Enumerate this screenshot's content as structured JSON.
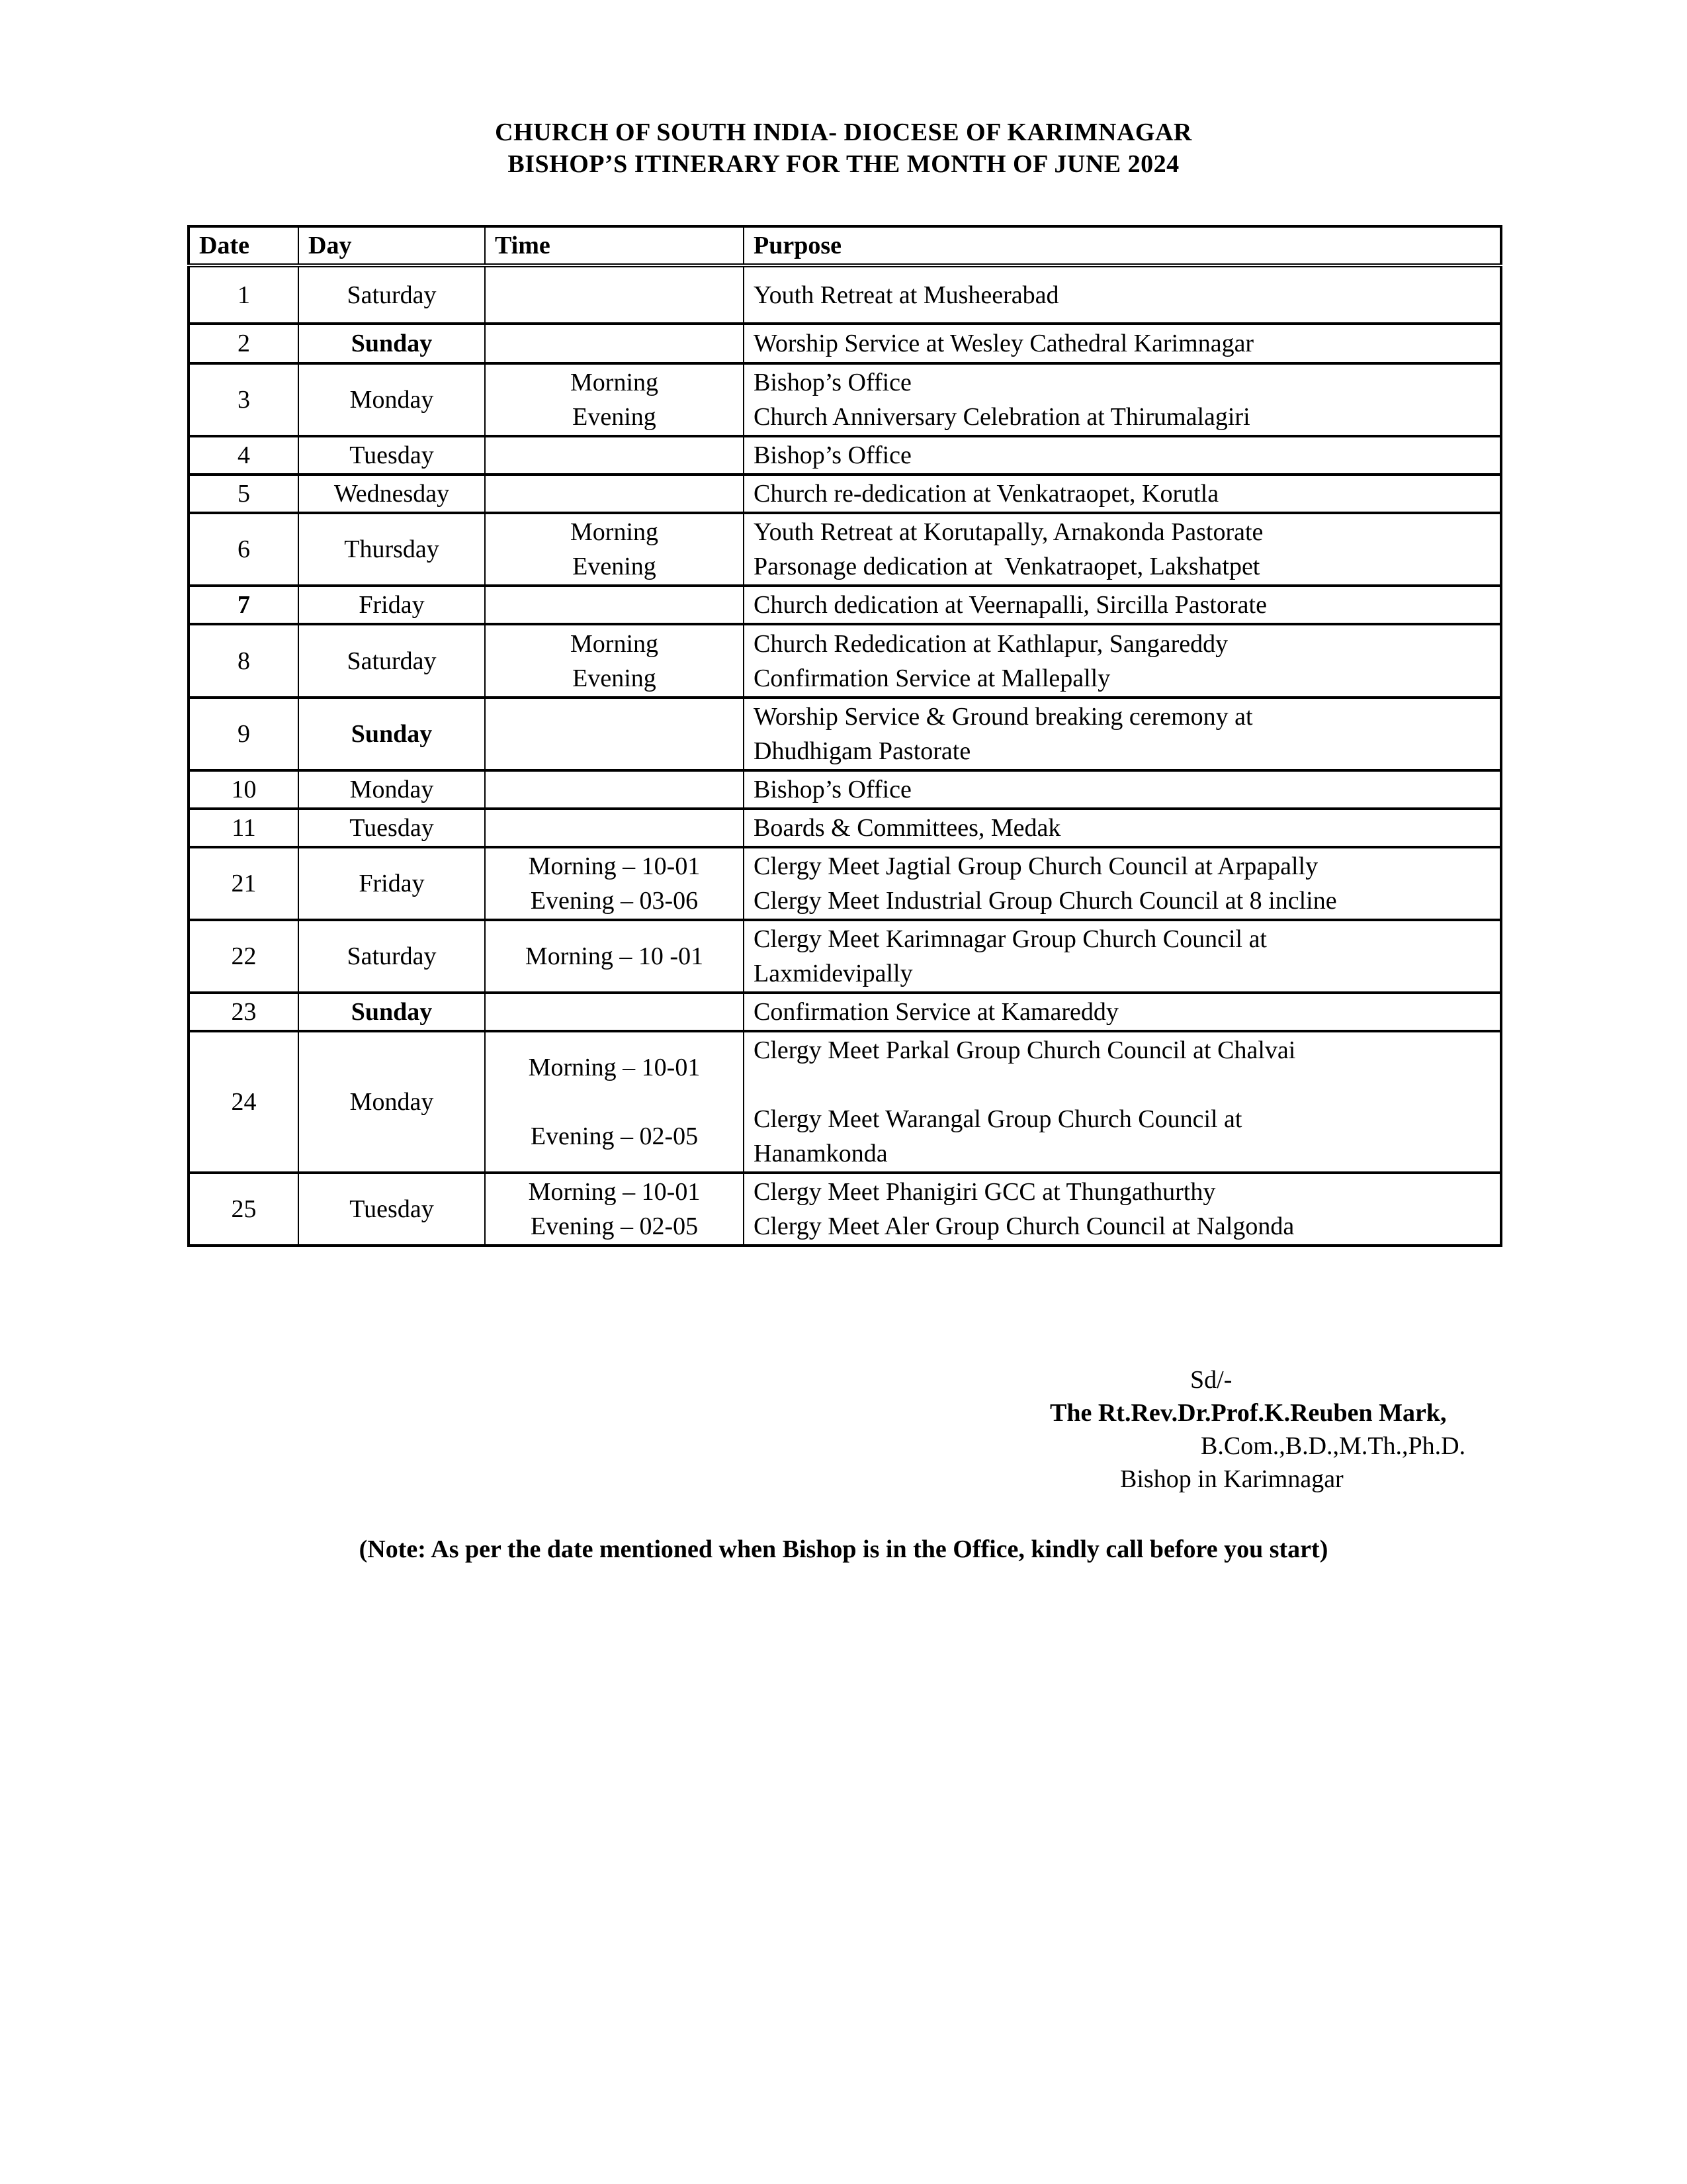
{
  "title": {
    "line1": "CHURCH OF SOUTH INDIA- DIOCESE OF KARIMNAGAR",
    "line2": "BISHOP’S ITINERARY FOR THE MONTH OF JUNE 2024"
  },
  "table": {
    "headers": [
      "Date",
      "Day",
      "Time",
      "Purpose"
    ],
    "rows": [
      {
        "date": "1",
        "day": "Saturday",
        "day_bold": false,
        "date_bold": false,
        "time": "",
        "purpose": "Youth Retreat at Musheerabad"
      },
      {
        "date": "2",
        "day": "Sunday",
        "day_bold": true,
        "date_bold": false,
        "time": "",
        "purpose": "Worship Service at Wesley Cathedral Karimnagar"
      },
      {
        "date": "3",
        "day": "Monday",
        "day_bold": false,
        "date_bold": false,
        "time": "Morning\nEvening",
        "purpose": "Bishop’s Office\nChurch Anniversary Celebration at Thirumalagiri"
      },
      {
        "date": "4",
        "day": "Tuesday",
        "day_bold": false,
        "date_bold": false,
        "time": "",
        "purpose": "Bishop’s Office"
      },
      {
        "date": "5",
        "day": "Wednesday",
        "day_bold": false,
        "date_bold": false,
        "time": "",
        "purpose": "Church re-dedication at Venkatraopet, Korutla"
      },
      {
        "date": "6",
        "day": "Thursday",
        "day_bold": false,
        "date_bold": false,
        "time": "Morning\nEvening",
        "purpose": "Youth Retreat at Korutapally, Arnakonda Pastorate\nParsonage dedication at  Venkatraopet, Lakshatpet"
      },
      {
        "date": "7",
        "day": "Friday",
        "day_bold": false,
        "date_bold": true,
        "time": "",
        "purpose": "Church dedication at Veernapalli, Sircilla Pastorate"
      },
      {
        "date": "8",
        "day": "Saturday",
        "day_bold": false,
        "date_bold": false,
        "time": "Morning\nEvening",
        "purpose": "Church Rededication at Kathlapur, Sangareddy\nConfirmation Service at Mallepally"
      },
      {
        "date": "9",
        "day": "Sunday",
        "day_bold": true,
        "date_bold": false,
        "time": "",
        "purpose": "Worship Service & Ground breaking ceremony at\nDhudhigam Pastorate"
      },
      {
        "date": "10",
        "day": "Monday",
        "day_bold": false,
        "date_bold": false,
        "time": "",
        "purpose": "Bishop’s Office"
      },
      {
        "date": "11",
        "day": "Tuesday",
        "day_bold": false,
        "date_bold": false,
        "time": "",
        "purpose": "Boards & Committees, Medak"
      },
      {
        "date": "21",
        "day": "Friday",
        "day_bold": false,
        "date_bold": false,
        "time": "Morning – 10-01\nEvening – 03-06",
        "purpose": "Clergy Meet Jagtial Group Church Council at Arpapally\nClergy Meet Industrial Group Church Council at 8 incline"
      },
      {
        "date": "22",
        "day": "Saturday",
        "day_bold": false,
        "date_bold": false,
        "time": "Morning – 10 -01",
        "purpose": "Clergy Meet Karimnagar Group Church Council at\nLaxmidevipally"
      },
      {
        "date": "23",
        "day": "Sunday",
        "day_bold": true,
        "date_bold": false,
        "time": "",
        "purpose": "Confirmation Service at Kamareddy"
      },
      {
        "date": "24",
        "day": "Monday",
        "day_bold": false,
        "date_bold": false,
        "time": "Morning – 10-01\n\nEvening – 02-05",
        "purpose": "Clergy Meet Parkal Group Church Council at Chalvai\n\nClergy Meet Warangal Group Church Council at\nHanamkonda"
      },
      {
        "date": "25",
        "day": "Tuesday",
        "day_bold": false,
        "date_bold": false,
        "time": "Morning – 10-01\nEvening – 02-05",
        "purpose": "Clergy Meet Phanigiri GCC at Thungathurthy\nClergy Meet Aler Group Church Council at Nalgonda"
      }
    ]
  },
  "signature": {
    "sd": "Sd/-",
    "name": "The Rt.Rev.Dr.Prof.K.Reuben Mark,",
    "degrees": "B.Com.,B.D.,M.Th.,Ph.D.",
    "role": "Bishop in Karimnagar"
  },
  "note": "(Note: As per the date mentioned when Bishop is in the Office, kindly call before you start)"
}
